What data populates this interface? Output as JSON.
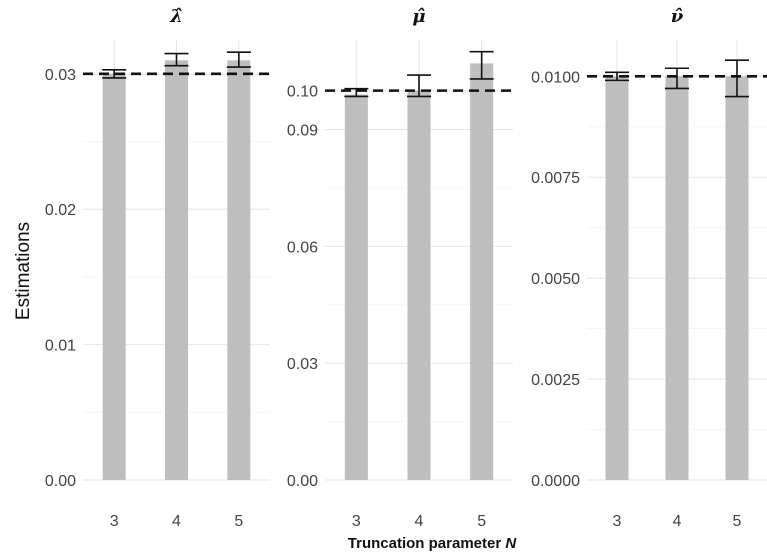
{
  "y_title": "Estimations",
  "x_title_prefix": "Truncation parameter ",
  "x_title_var": "N",
  "colors": {
    "bar": "#bebebe",
    "errorbar": "#111111",
    "grid": "#e6e6e6",
    "refline": "#111111"
  },
  "chart_data": [
    {
      "type": "bar",
      "title": "λ̂",
      "categories": [
        "3",
        "4",
        "5"
      ],
      "values": [
        0.03,
        0.031,
        0.031
      ],
      "error_low": [
        0.0297,
        0.0306,
        0.0305
      ],
      "error_high": [
        0.0303,
        0.0315,
        0.0316
      ],
      "reference": 0.03,
      "yticks": [
        0,
        0.01,
        0.02,
        0.03
      ],
      "ytick_labels": [
        "0.00",
        "0.01",
        "0.02",
        "0.03"
      ],
      "ylim": [
        0,
        0.0325
      ],
      "grid": true
    },
    {
      "type": "bar",
      "title": "μ̂",
      "categories": [
        "3",
        "4",
        "5"
      ],
      "values": [
        0.099,
        0.1,
        0.107
      ],
      "error_low": [
        0.0985,
        0.0985,
        0.103
      ],
      "error_high": [
        0.1005,
        0.104,
        0.11
      ],
      "reference": 0.1,
      "yticks": [
        0,
        0.03,
        0.06,
        0.09,
        0.1
      ],
      "ytick_labels": [
        "0.00",
        "0.03",
        "0.06",
        "0.09",
        "0.10"
      ],
      "ylim": [
        0,
        0.113
      ],
      "grid": true
    },
    {
      "type": "bar",
      "title": "ν̂",
      "categories": [
        "3",
        "4",
        "5"
      ],
      "values": [
        0.01,
        0.01,
        0.01
      ],
      "error_low": [
        0.0099,
        0.0097,
        0.0095
      ],
      "error_high": [
        0.0101,
        0.0102,
        0.0104
      ],
      "reference": 0.01,
      "yticks": [
        0,
        0.0025,
        0.005,
        0.0075,
        0.01
      ],
      "ytick_labels": [
        "0.0000",
        "0.0025",
        "0.0050",
        "0.0075",
        "0.0100"
      ],
      "ylim": [
        0,
        0.0109
      ],
      "grid": true
    }
  ]
}
